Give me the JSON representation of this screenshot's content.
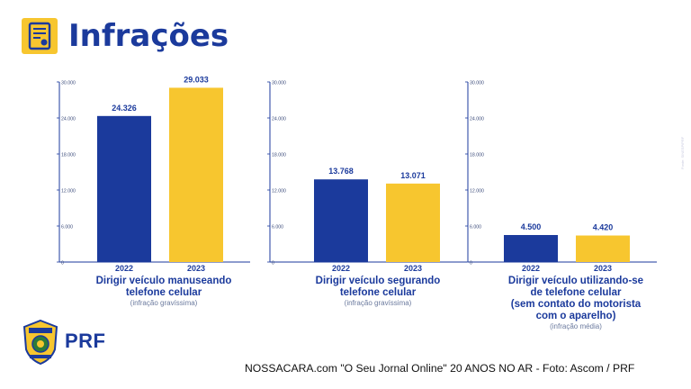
{
  "header": {
    "title": "Infrações",
    "icon": "document-certificate-icon"
  },
  "colors": {
    "primary_blue": "#1B3A9C",
    "bar_2022": "#1B3A9C",
    "bar_2023": "#F7C62F",
    "axis_text": "#3b4b7a"
  },
  "chart_data": [
    {
      "type": "bar",
      "categories": [
        "2022",
        "2023"
      ],
      "values": [
        24326,
        29033
      ],
      "value_labels": [
        "24.326",
        "29.033"
      ],
      "ylim": [
        0,
        30000
      ],
      "yticks": [
        "0",
        "6.000",
        "12.000",
        "18.000",
        "24.000",
        "30.000"
      ],
      "caption": "Dirigir veículo manuseando telefone celular",
      "caption_lines": [
        "Dirigir veículo manuseando",
        "telefone celular"
      ],
      "note": "(infração gravíssima)",
      "grid": false
    },
    {
      "type": "bar",
      "categories": [
        "2022",
        "2023"
      ],
      "values": [
        13768,
        13071
      ],
      "value_labels": [
        "13.768",
        "13.071"
      ],
      "ylim": [
        0,
        30000
      ],
      "yticks": [
        "0",
        "6.000",
        "12.000",
        "18.000",
        "24.000",
        "30.000"
      ],
      "caption": "Dirigir veículo segurando telefone celular",
      "caption_lines": [
        "Dirigir veículo segurando",
        "telefone celular"
      ],
      "note": "(infração gravíssima)",
      "grid": false
    },
    {
      "type": "bar",
      "categories": [
        "2022",
        "2023"
      ],
      "values": [
        4500,
        4420
      ],
      "value_labels": [
        "4.500",
        "4.420"
      ],
      "ylim": [
        0,
        30000
      ],
      "yticks": [
        "0",
        "6.000",
        "12.000",
        "18.000",
        "24.000",
        "30.000"
      ],
      "caption": "Dirigir veículo utilizando-se de telefone celular (sem contato do motorista com o aparelho)",
      "caption_lines": [
        "Dirigir veículo utilizando-se",
        "de telefone celular",
        "(sem contato do motorista",
        "com o aparelho)"
      ],
      "note": "(infração média)",
      "grid": false
    }
  ],
  "footer": {
    "credit": "NOSSACARA.com \"O Seu Jornal Online\" 20 ANOS NO AR - Foto: Ascom / PRF",
    "logo_text": "PRF",
    "badge_text": "POLÍCIA RODOVIÁRIA FEDERAL"
  },
  "side_credit": "Fonte: SINESP/PRF"
}
